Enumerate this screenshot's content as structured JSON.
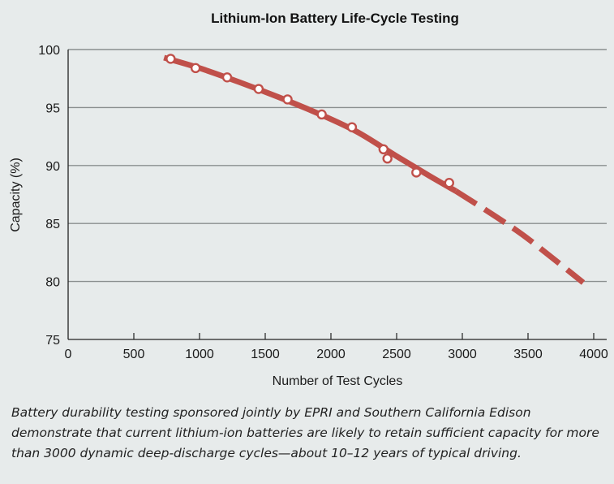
{
  "chart_data": {
    "type": "line",
    "title": "Lithium-Ion Battery Life-Cycle Testing",
    "xlabel": "Number of Test Cycles",
    "ylabel": "Capacity (%)",
    "xlim": [
      0,
      4000
    ],
    "ylim": [
      75,
      100
    ],
    "x_ticks": [
      0,
      500,
      1000,
      1500,
      2000,
      2500,
      3000,
      3500,
      4000
    ],
    "y_ticks": [
      75,
      80,
      85,
      90,
      95,
      100
    ],
    "grid": "horizontal",
    "series": [
      {
        "type": "scatter",
        "x": [
          780,
          970,
          1210,
          1450,
          1670,
          1930,
          2160,
          2400,
          2430,
          2650,
          2900
        ],
        "y": [
          99.2,
          98.4,
          97.6,
          96.6,
          95.7,
          94.4,
          93.3,
          91.4,
          90.6,
          89.4,
          88.5
        ]
      },
      {
        "type": "line",
        "x": [
          730,
          1000,
          1300,
          1600,
          1900,
          2200,
          2500,
          2750,
          2950
        ],
        "y": [
          99.3,
          98.4,
          97.2,
          95.9,
          94.5,
          92.9,
          90.8,
          89.1,
          87.8
        ]
      },
      {
        "type": "line",
        "line_style": "dashed",
        "x": [
          2950,
          3200,
          3450,
          3700,
          3920
        ],
        "y": [
          87.8,
          86.0,
          84.1,
          81.9,
          79.9
        ]
      }
    ],
    "colors": {
      "curve": "#c0504a",
      "marker_fill": "#ffffff",
      "grid": "#8a8f8f",
      "axis": "#222222"
    }
  },
  "caption": "Battery durability testing sponsored jointly by EPRI and Southern California Edison demonstrate that current lithium-ion batteries are likely to retain sufficient capacity for more than 3000 dynamic deep-discharge cycles—about 10–12 years of typical driving."
}
